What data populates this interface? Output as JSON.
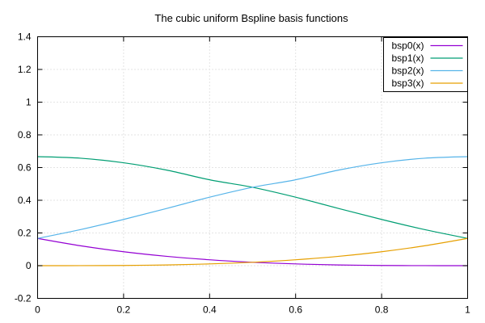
{
  "chart_data": {
    "type": "line",
    "title": "The cubic uniform Bspline basis functions",
    "xlabel": "",
    "ylabel": "",
    "xlim": [
      0,
      1
    ],
    "ylim": [
      -0.2,
      1.4
    ],
    "xticks": [
      "0",
      "0.2",
      "0.4",
      "0.6",
      "0.8",
      "1"
    ],
    "yticks": [
      "-0.2",
      "0",
      "0.2",
      "0.4",
      "0.6",
      "0.8",
      "1",
      "1.2",
      "1.4"
    ],
    "grid": true,
    "legend_position": "top-right",
    "x": [
      0,
      0.1,
      0.2,
      0.3,
      0.4,
      0.5,
      0.6,
      0.7,
      0.8,
      0.9,
      1.0
    ],
    "series": [
      {
        "name": "bsp0(x)",
        "color": "#9400d3",
        "values": [
          0.1667,
          0.1215,
          0.0853,
          0.0572,
          0.036,
          0.0208,
          0.0107,
          0.0045,
          0.0013,
          0.0002,
          0.0
        ]
      },
      {
        "name": "bsp1(x)",
        "color": "#009e73",
        "values": [
          0.6667,
          0.6572,
          0.6293,
          0.5845,
          0.5253,
          0.4792,
          0.4187,
          0.3498,
          0.2827,
          0.2205,
          0.1667
        ]
      },
      {
        "name": "bsp2(x)",
        "color": "#56b4e9",
        "values": [
          0.1667,
          0.2205,
          0.2827,
          0.3498,
          0.4187,
          0.4792,
          0.5253,
          0.5845,
          0.6293,
          0.6572,
          0.6667
        ]
      },
      {
        "name": "bsp3(x)",
        "color": "#e69f00",
        "values": [
          0.0,
          0.0002,
          0.0013,
          0.0045,
          0.0107,
          0.0208,
          0.036,
          0.0572,
          0.0853,
          0.1215,
          0.1667
        ]
      }
    ]
  }
}
